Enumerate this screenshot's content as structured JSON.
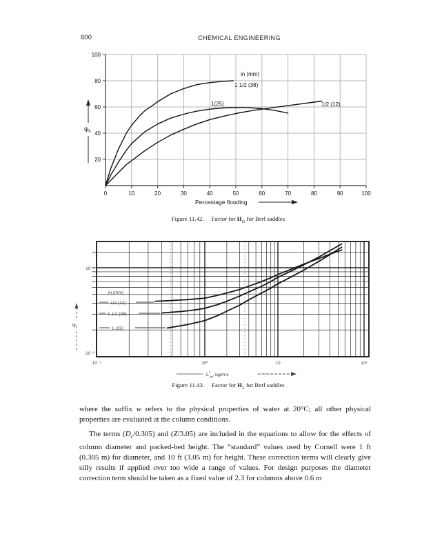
{
  "header": {
    "page_number": "600",
    "running_title": "CHEMICAL ENGINEERING"
  },
  "figure1": {
    "caption": {
      "label": "Figure 11.42.",
      "pre": "Factor for ",
      "symbol": "H",
      "symbol_sub": "G",
      "post": " for Berl saddles"
    }
  },
  "figure2": {
    "caption": {
      "label": "Figure 11.43.",
      "pre": "Factor for ",
      "symbol": "H",
      "symbol_sub": "L",
      "post": " for Berl saddles"
    }
  },
  "chart_data": [
    {
      "id": "figure-11-42",
      "type": "line",
      "title": "Factor for HG for Berl saddles",
      "xlabel": "Percentage flooding",
      "ylabel": "ψh",
      "ylabel_parts": {
        "sym": "ψ",
        "sub": "h"
      },
      "xlim": [
        0,
        100
      ],
      "ylim": [
        0,
        100
      ],
      "x_ticks": [
        0,
        10,
        20,
        30,
        40,
        50,
        60,
        70,
        80,
        90,
        100
      ],
      "y_ticks": [
        20,
        40,
        60,
        80,
        100
      ],
      "grid": true,
      "units_note": "in (mm)",
      "series": [
        {
          "name": "1 1/2 (38)",
          "points": [
            [
              0,
              0
            ],
            [
              2,
              13
            ],
            [
              5,
              28
            ],
            [
              8,
              40
            ],
            [
              10,
              46
            ],
            [
              13,
              53
            ],
            [
              15,
              57
            ],
            [
              18,
              61
            ],
            [
              20,
              64
            ],
            [
              25,
              70
            ],
            [
              30,
              74
            ],
            [
              35,
              77
            ],
            [
              40,
              78.6
            ],
            [
              45,
              79.5
            ],
            [
              49,
              80
            ]
          ]
        },
        {
          "name": "1(25)",
          "points": [
            [
              0,
              0
            ],
            [
              2,
              8
            ],
            [
              5,
              18
            ],
            [
              8,
              27
            ],
            [
              10,
              32
            ],
            [
              15,
              41
            ],
            [
              20,
              47
            ],
            [
              25,
              51.5
            ],
            [
              30,
              54.5
            ],
            [
              35,
              56.8
            ],
            [
              40,
              58.3
            ],
            [
              45,
              59.2
            ],
            [
              50,
              59.6
            ],
            [
              55,
              59.4
            ],
            [
              60,
              58.7
            ],
            [
              65,
              57.3
            ],
            [
              70,
              55.3
            ]
          ]
        },
        {
          "name": "1/2 (12)",
          "points": [
            [
              0,
              0
            ],
            [
              2,
              4
            ],
            [
              5,
              10
            ],
            [
              8,
              16
            ],
            [
              10,
              19
            ],
            [
              15,
              26.5
            ],
            [
              20,
              33
            ],
            [
              25,
              38.5
            ],
            [
              30,
              43
            ],
            [
              35,
              47
            ],
            [
              40,
              50.3
            ],
            [
              45,
              52.8
            ],
            [
              50,
              55
            ],
            [
              55,
              56.8
            ],
            [
              60,
              58.3
            ],
            [
              65,
              59.7
            ],
            [
              70,
              61
            ],
            [
              75,
              62.3
            ],
            [
              80,
              63.7
            ],
            [
              83,
              64.5
            ]
          ]
        }
      ]
    },
    {
      "id": "figure-11-43",
      "type": "line",
      "title": "Factor for HL for Berl saddles",
      "xlabel": "L*w, kg/m²s",
      "xlabel_parts": {
        "sym": "L",
        "sup": "*",
        "sub": "w",
        "units": ", kg/m²s"
      },
      "ylabel": "φL",
      "ylabel_parts": {
        "sym": "φ",
        "sub": "L"
      },
      "x_scale": "log",
      "y_scale": "log",
      "xlim": [
        0.1,
        100
      ],
      "ylim": [
        0.01,
        0.2
      ],
      "x_tick_labels": [
        "10⁻¹",
        "10⁰",
        "10",
        "10²"
      ],
      "x_tick_values": [
        0.1,
        1,
        10,
        100
      ],
      "y_tick_labels": [
        "10⁻²",
        "10⁻¹"
      ],
      "y_tick_values": [
        0.01,
        0.1
      ],
      "grid": true,
      "units_note": "in (mm)",
      "series": [
        {
          "name": "1/2 (12)",
          "points": [
            [
              0.35,
              0.042
            ],
            [
              0.5,
              0.0428
            ],
            [
              0.7,
              0.0438
            ],
            [
              1,
              0.0455
            ],
            [
              1.5,
              0.049
            ],
            [
              2,
              0.052
            ],
            [
              3,
              0.057
            ],
            [
              4,
              0.062
            ],
            [
              6,
              0.07
            ],
            [
              8,
              0.077
            ],
            [
              10,
              0.084
            ],
            [
              15,
              0.098
            ],
            [
              20,
              0.11
            ],
            [
              30,
              0.127
            ],
            [
              40,
              0.142
            ],
            [
              55,
              0.158
            ]
          ]
        },
        {
          "name": "1 1/2 (38)",
          "points": [
            [
              0.4,
              0.031
            ],
            [
              0.6,
              0.0322
            ],
            [
              0.8,
              0.0335
            ],
            [
              1,
              0.035
            ],
            [
              1.5,
              0.0385
            ],
            [
              2,
              0.042
            ],
            [
              3,
              0.048
            ],
            [
              4,
              0.0535
            ],
            [
              6,
              0.062
            ],
            [
              8,
              0.07
            ],
            [
              10,
              0.078
            ],
            [
              15,
              0.094
            ],
            [
              20,
              0.108
            ],
            [
              30,
              0.132
            ],
            [
              40,
              0.155
            ],
            [
              55,
              0.185
            ]
          ]
        },
        {
          "name": "1 (25)",
          "points": [
            [
              0.45,
              0.021
            ],
            [
              0.7,
              0.023
            ],
            [
              1,
              0.0255
            ],
            [
              1.5,
              0.029
            ],
            [
              2,
              0.0325
            ],
            [
              3,
              0.038
            ],
            [
              4,
              0.0435
            ],
            [
              6,
              0.052
            ],
            [
              8,
              0.059
            ],
            [
              10,
              0.066
            ],
            [
              15,
              0.081
            ],
            [
              20,
              0.094
            ],
            [
              30,
              0.118
            ],
            [
              40,
              0.14
            ],
            [
              55,
              0.17
            ]
          ]
        }
      ]
    }
  ],
  "body": {
    "p1": [
      "where the suffix ",
      "w",
      " refers to the physical properties of water at 20°C; all other physical properties are evaluated at the column conditions."
    ],
    "p2": [
      "The terms (",
      "D",
      "c",
      "/0.305) and (",
      "Z",
      "/3.05) are included in the equations to allow for the effects of column diameter and packed-bed height. The “standard” values used by Cornell were 1 ft (0.305 m) for diameter, and 10 ft (3.05 m) for height. These correction terms will clearly give silly results if applied over too wide a range of values. For design purposes the diameter correction term should be taken as a fixed value of 2.3 for columns above 0.6 m"
    ]
  }
}
